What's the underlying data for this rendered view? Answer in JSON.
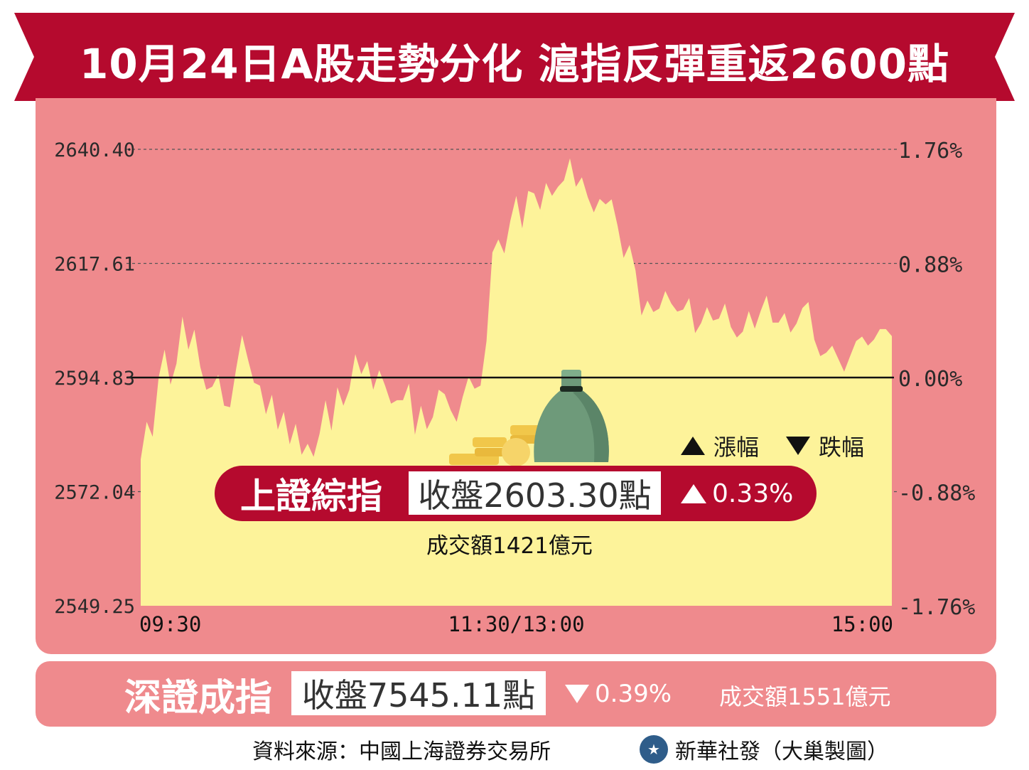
{
  "title": "10月24日A股走勢分化  滬指反彈重返2600點",
  "colors": {
    "ribbon": "#b50a2e",
    "panel": "#ef8a8d",
    "area_fill": "#fdf39a",
    "baseline": "#111111",
    "money_bag": "#6e9a7a",
    "coins": "#f1c74a"
  },
  "legend": {
    "up_label": "漲幅",
    "down_label": "跌幅"
  },
  "shanghai": {
    "name": "上證綜指",
    "close": "收盤2603.30點",
    "change": "0.33%",
    "direction": "up",
    "turnover": "成交額1421億元"
  },
  "shenzhen": {
    "name": "深證成指",
    "close": "收盤7545.11點",
    "change": "0.39%",
    "direction": "down",
    "turnover": "成交額1551億元"
  },
  "footer": {
    "source": "資料來源：中國上海證券交易所",
    "credit": "新華社發（大巢製圖）",
    "logo_icon": "xinhua-logo-icon"
  },
  "chart_data": {
    "type": "area",
    "ylim": [
      2549.25,
      2640.4
    ],
    "baseline": 2594.83,
    "y_ticks": [
      "2640.40",
      "2617.61",
      "2594.83",
      "2572.04",
      "2549.25"
    ],
    "y2_ticks": [
      "1.76%",
      "0.88%",
      "0.00%",
      "-0.88%",
      "-1.76%"
    ],
    "x_ticks": [
      "09:30",
      "11:30/13:00",
      "15:00"
    ],
    "grid": "dashed horizontal",
    "series": [
      {
        "values": [
          2578.5,
          2586.0,
          2583.0,
          2594.8,
          2600.4,
          2593.4,
          2597.6,
          2607.0,
          2600.4,
          2604.4,
          2596.9,
          2592.4,
          2593.0,
          2595.4,
          2589.2,
          2588.9,
          2596.5,
          2603.3,
          2598.4,
          2593.8,
          2593.2,
          2587.5,
          2591.4,
          2584.4,
          2588.0,
          2581.5,
          2585.6,
          2579.4,
          2581.6,
          2579.0,
          2583.6,
          2590.3,
          2584.2,
          2592.9,
          2589.2,
          2592.4,
          2599.5,
          2595.5,
          2598.1,
          2592.4,
          2596.3,
          2593.2,
          2589.6,
          2590.3,
          2590.3,
          2593.6,
          2583.4,
          2589.2,
          2584.5,
          2586.9,
          2592.4,
          2591.5,
          2588.3,
          2586.0,
          2590.9,
          2595.0,
          2592.6,
          2593.2,
          2602.1,
          2619.8,
          2622.4,
          2619.6,
          2626.1,
          2631.1,
          2624.6,
          2632.1,
          2631.6,
          2628.3,
          2633.7,
          2631.1,
          2632.9,
          2634.2,
          2638.6,
          2632.9,
          2634.8,
          2630.8,
          2627.8,
          2630.5,
          2629.4,
          2630.4,
          2625.1,
          2618.7,
          2621.3,
          2616.2,
          2607.2,
          2610.2,
          2607.9,
          2608.6,
          2612.1,
          2609.6,
          2608.0,
          2608.4,
          2610.7,
          2603.7,
          2605.7,
          2608.9,
          2606.2,
          2606.6,
          2609.6,
          2604.9,
          2602.8,
          2604.0,
          2608.1,
          2604.6,
          2608.1,
          2611.2,
          2605.8,
          2605.8,
          2607.7,
          2603.8,
          2605.6,
          2608.7,
          2609.9,
          2602.4,
          2599.1,
          2599.8,
          2601.2,
          2598.6,
          2596.0,
          2599.1,
          2602.1,
          2603.0,
          2601.2,
          2602.4,
          2604.5,
          2604.5,
          2603.1
        ]
      }
    ]
  }
}
